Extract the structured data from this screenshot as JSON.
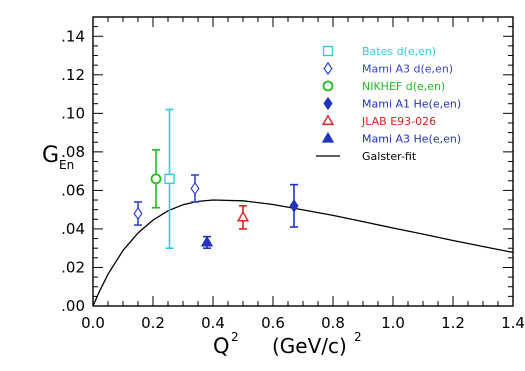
{
  "chart_data": {
    "type": "scatter",
    "xlabel_base": "Q",
    "xlabel_sup": "2",
    "xlabel_unit": "(GeV/c)",
    "xlabel_unit_sup": "2",
    "ylabel_base": "G",
    "ylabel_sub": "En",
    "xlim": [
      0.0,
      1.4
    ],
    "ylim": [
      0.0,
      0.15
    ],
    "xticks": [
      "0.0",
      "0.2",
      "0.4",
      "0.6",
      "0.8",
      "1.0",
      "1.2",
      "1.4"
    ],
    "yticks": [
      ".00",
      ".02",
      ".04",
      ".06",
      ".08",
      ".10",
      ".12",
      ".14"
    ],
    "grid": false,
    "legend_position": "top-right",
    "series": [
      {
        "name": "Bates d(e,en)",
        "marker": "open-square",
        "color": "#33ccdd",
        "points": [
          {
            "x": 0.255,
            "y": 0.066,
            "err": 0.036
          }
        ]
      },
      {
        "name": "Mami A3 d(e,en)",
        "marker": "open-diamond",
        "color": "#3344cc",
        "points": [
          {
            "x": 0.15,
            "y": 0.048,
            "err": 0.006
          },
          {
            "x": 0.34,
            "y": 0.061,
            "err": 0.007
          }
        ]
      },
      {
        "name": "NIKHEF d(e,en)",
        "marker": "open-circle",
        "color": "#22bb22",
        "points": [
          {
            "x": 0.21,
            "y": 0.066,
            "err": 0.015
          }
        ]
      },
      {
        "name": "Mami A1 He(e,en)",
        "marker": "filled-diamond",
        "color": "#2233bb",
        "points": [
          {
            "x": 0.67,
            "y": 0.052,
            "err": 0.011
          }
        ]
      },
      {
        "name": "JLAB E93-026",
        "marker": "open-triangle",
        "color": "#dd2222",
        "points": [
          {
            "x": 0.5,
            "y": 0.046,
            "err": 0.006
          }
        ]
      },
      {
        "name": "Mami A3 He(e,en)",
        "marker": "filled-triangle",
        "color": "#2233bb",
        "points": [
          {
            "x": 0.38,
            "y": 0.033,
            "err": 0.003
          }
        ]
      },
      {
        "name": "Galster-fit",
        "marker": "line",
        "color": "#000000",
        "curve": [
          [
            0.0,
            0.0
          ],
          [
            0.02,
            0.0071
          ],
          [
            0.05,
            0.0165
          ],
          [
            0.1,
            0.0288
          ],
          [
            0.15,
            0.0379
          ],
          [
            0.2,
            0.0446
          ],
          [
            0.25,
            0.0494
          ],
          [
            0.3,
            0.0526
          ],
          [
            0.35,
            0.0543
          ],
          [
            0.4,
            0.055
          ],
          [
            0.5,
            0.0546
          ],
          [
            0.6,
            0.0527
          ],
          [
            0.7,
            0.0499
          ],
          [
            0.8,
            0.047
          ],
          [
            0.9,
            0.0438
          ],
          [
            1.0,
            0.0405
          ],
          [
            1.1,
            0.0373
          ],
          [
            1.2,
            0.034
          ],
          [
            1.3,
            0.0309
          ],
          [
            1.4,
            0.0278
          ]
        ]
      }
    ]
  }
}
